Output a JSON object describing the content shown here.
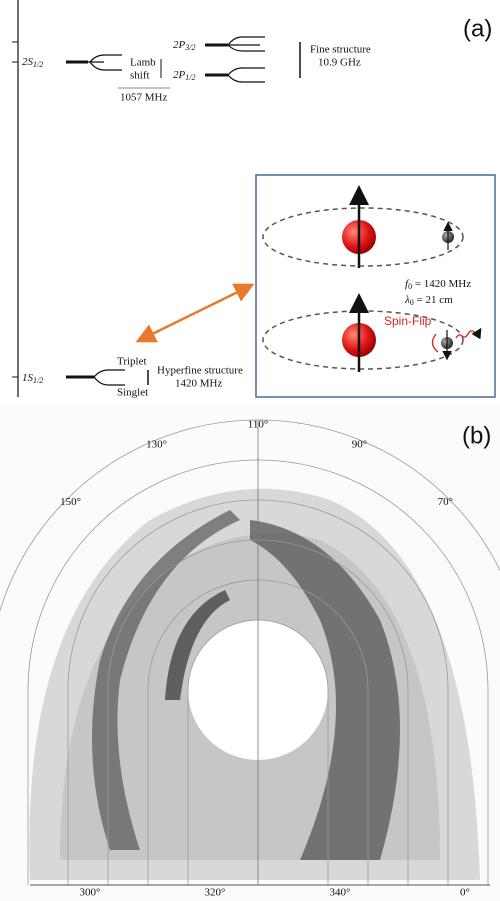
{
  "panel_a": {
    "label": "(a)",
    "levels": {
      "s2": {
        "main": "2S",
        "sub": "1/2"
      },
      "p3": {
        "main": "2P",
        "sub": "3/2"
      },
      "p1": {
        "main": "2P",
        "sub": "1/2"
      },
      "s1": {
        "main": "1S",
        "sub": "1/2"
      }
    },
    "lamb": {
      "line1": "Lamb",
      "line2": "shift",
      "freq": "1057 MHz"
    },
    "fine": {
      "line1": "Fine structure",
      "line2": "10.9 GHz"
    },
    "hyperfine": {
      "triplet": "Triplet",
      "singlet": "Singlet",
      "line1": "Hyperfine structure",
      "line2": "1420 MHz"
    },
    "inset": {
      "f0": {
        "sym": "f",
        "sub": "0",
        "rest": " = 1420 MHz"
      },
      "lambda0": {
        "sym": "λ",
        "sub": "0",
        "rest": " = 21 cm"
      },
      "spin_flip": "Spin-Flip"
    }
  },
  "panel_b": {
    "label": "(b)",
    "bottom_labels": [
      "300°",
      "320°",
      "340°",
      "0°"
    ],
    "top_labels": [
      "150°",
      "130°",
      "110°",
      "90°",
      "70°"
    ]
  }
}
